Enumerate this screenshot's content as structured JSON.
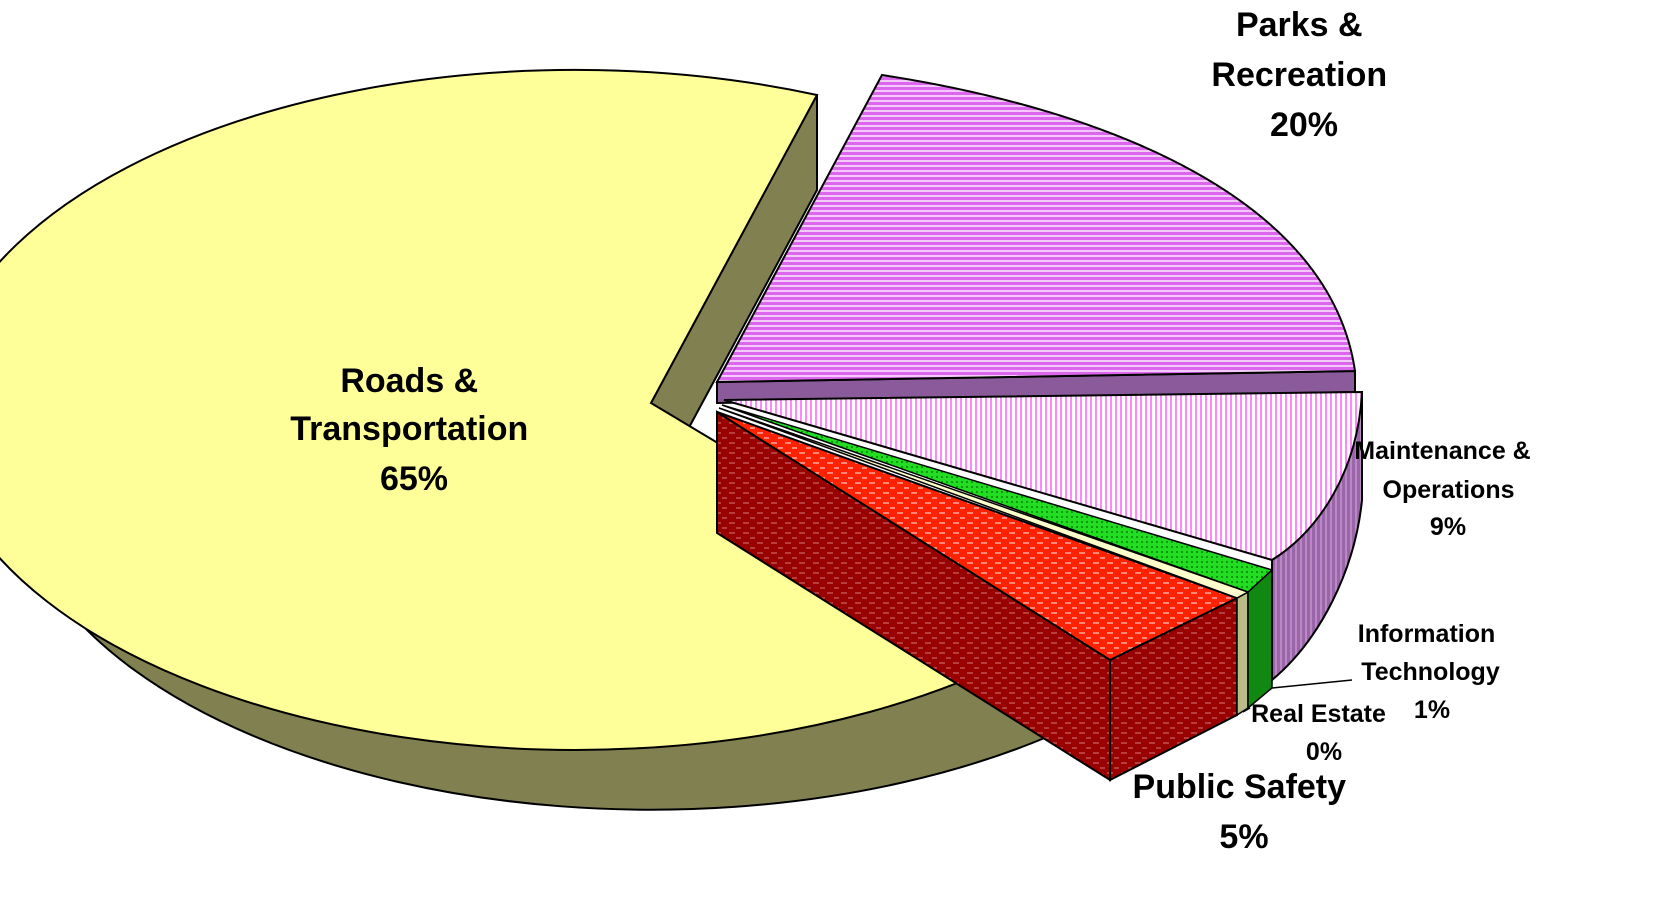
{
  "chart_data": {
    "type": "pie",
    "style": "3d-exploded",
    "categories": [
      "Roads & Transportation",
      "Parks & Recreation",
      "Maintenance & Operations",
      "Information Technology",
      "Real Estate",
      "Public Safety"
    ],
    "values": [
      65,
      20,
      9,
      1,
      0,
      5
    ],
    "value_labels": [
      "65%",
      "20%",
      "9%",
      "1%",
      "0%",
      "5%"
    ],
    "label_lines": {
      "roads": [
        "Roads &",
        "Transportation",
        "65%"
      ],
      "parks": [
        "Parks &",
        "Recreation",
        "20%"
      ],
      "maintenance": [
        "Maintenance &",
        "Operations",
        "9%"
      ],
      "it": [
        "Information",
        "Technology",
        "1%"
      ],
      "realestate": [
        "Real Estate",
        "0%"
      ],
      "safety": [
        "Public Safety",
        "5%"
      ]
    },
    "colors": {
      "roads": "#FFFF99",
      "parks": "#DD66EE",
      "maintenance": "#FF66FF",
      "it": "#22DD22",
      "realestate": "#FFFFCC",
      "safety": "#FF2200"
    },
    "side_colors": {
      "roads": "#808050",
      "parks": "#8A5A9A",
      "maintenance": "#9966AA",
      "it": "#118811",
      "realestate": "#BBBB88",
      "safety": "#990000"
    },
    "title": "",
    "legend": "none"
  }
}
